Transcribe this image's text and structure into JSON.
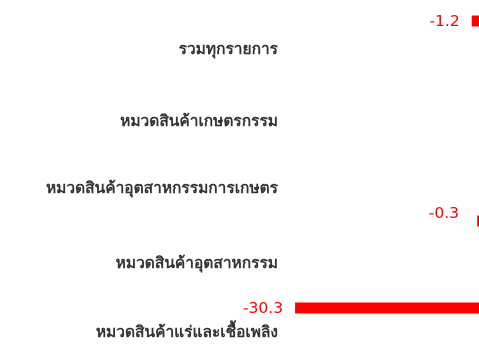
{
  "chart_data": {
    "type": "bar",
    "orientation": "horizontal",
    "categories": [
      "รวมทุกรายการ",
      "หมวดสินค้าเกษตรกรรม",
      "หมวดสินค้าอุตสาหกรรมการเกษตร",
      "หมวดสินค้าอุตสาหกรรม",
      "หมวดสินค้าแร่และเชื้อเพลิง"
    ],
    "values": [
      -1.2,
      null,
      null,
      -0.3,
      -30.3
    ],
    "value_labels": [
      "-1.2",
      "",
      "",
      "-0.3",
      "-30.3"
    ],
    "title": "",
    "xlabel": "",
    "ylabel": "",
    "xlim": [
      -31,
      0
    ],
    "grid": false,
    "legend": "none",
    "colors": {
      "bar": "#ff0000",
      "value_label": "#ff0000",
      "category_label": "#333333"
    }
  }
}
